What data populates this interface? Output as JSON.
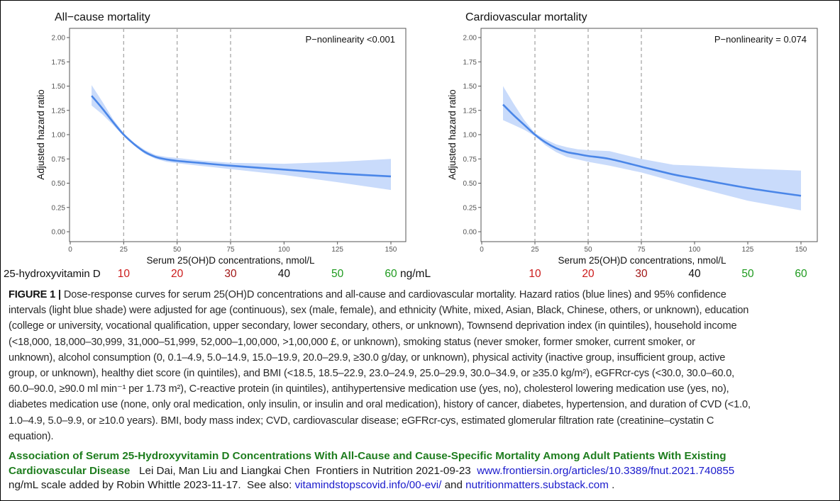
{
  "chart_data": [
    {
      "type": "line",
      "title": "All−cause mortality",
      "annotation": "P−nonlinearity <0.001",
      "xlabel": "Serum 25(OH)D concentrations, nmol/L",
      "ylabel": "Adjusted hazard ratio",
      "xlim": [
        0,
        150
      ],
      "ylim": [
        0,
        2
      ],
      "x_ticks": [
        "0",
        "25",
        "50",
        "75",
        "100",
        "125",
        "150"
      ],
      "y_ticks": [
        "0.00",
        "0.25",
        "0.50",
        "0.75",
        "1.00",
        "1.25",
        "1.50",
        "1.75",
        "2.00"
      ],
      "reference_lines_x": [
        25,
        50,
        75
      ],
      "grid": false,
      "series": [
        {
          "x": [
            10,
            15,
            20,
            25,
            30,
            35,
            40,
            45,
            50,
            60,
            75,
            100,
            125,
            150
          ],
          "y": [
            1.4,
            1.27,
            1.13,
            1.0,
            0.9,
            0.82,
            0.77,
            0.745,
            0.73,
            0.71,
            0.68,
            0.64,
            0.6,
            0.57
          ],
          "ci_lower": [
            1.3,
            1.21,
            1.1,
            0.985,
            0.885,
            0.8,
            0.75,
            0.72,
            0.705,
            0.68,
            0.645,
            0.585,
            0.51,
            0.43
          ],
          "ci_upper": [
            1.51,
            1.34,
            1.16,
            1.015,
            0.915,
            0.84,
            0.79,
            0.77,
            0.76,
            0.735,
            0.71,
            0.7,
            0.72,
            0.75
          ]
        }
      ],
      "colors": {
        "line": "#4a86e8",
        "band": "#c9dbfb",
        "refline": "#a8a8a8"
      }
    },
    {
      "type": "line",
      "title": "Cardiovascular mortality",
      "annotation": "P−nonlinearity = 0.074",
      "xlabel": "Serum 25(OH)D concentrations, nmol/L",
      "ylabel": "Adjusted hazard ratio",
      "xlim": [
        0,
        150
      ],
      "ylim": [
        0,
        2
      ],
      "x_ticks": [
        "0",
        "25",
        "50",
        "75",
        "100",
        "125",
        "150"
      ],
      "y_ticks": [
        "0.00",
        "0.25",
        "0.50",
        "0.75",
        "1.00",
        "1.25",
        "1.50",
        "1.75",
        "2.00"
      ],
      "reference_lines_x": [
        25,
        50,
        75
      ],
      "grid": false,
      "series": [
        {
          "x": [
            10,
            15,
            20,
            25,
            30,
            35,
            40,
            45,
            50,
            60,
            75,
            90,
            100,
            125,
            150
          ],
          "y": [
            1.31,
            1.2,
            1.1,
            1.0,
            0.92,
            0.86,
            0.82,
            0.8,
            0.78,
            0.75,
            0.67,
            0.59,
            0.55,
            0.45,
            0.37
          ],
          "ci_lower": [
            1.15,
            1.1,
            1.05,
            0.985,
            0.89,
            0.82,
            0.77,
            0.745,
            0.72,
            0.68,
            0.61,
            0.52,
            0.46,
            0.32,
            0.22
          ],
          "ci_upper": [
            1.5,
            1.32,
            1.15,
            1.015,
            0.95,
            0.9,
            0.87,
            0.85,
            0.84,
            0.83,
            0.75,
            0.69,
            0.68,
            0.65,
            0.63
          ]
        }
      ],
      "colors": {
        "line": "#4a86e8",
        "band": "#c9dbfb",
        "refline": "#a8a8a8"
      }
    }
  ],
  "ngml_scale": {
    "label": "25-hydroxyvitamin D",
    "unit": "ng/mL",
    "values": [
      {
        "ng": "10",
        "nmol": 25,
        "color": "#cc1a1a"
      },
      {
        "ng": "20",
        "nmol": 50,
        "color": "#cc1a1a"
      },
      {
        "ng": "30",
        "nmol": 75,
        "color": "#a01515"
      },
      {
        "ng": "40",
        "nmol": 100,
        "color": "#111111"
      },
      {
        "ng": "50",
        "nmol": 125,
        "color": "#1e9a1e"
      },
      {
        "ng": "60",
        "nmol": 150,
        "color": "#1e9a1e"
      }
    ]
  },
  "caption": {
    "label": "FIGURE 1 |",
    "lines": [
      " Dose-response curves for serum 25(OH)D concentrations and all-cause and cardiovascular mortality. Hazard ratios (blue lines) and 95% confidence",
      "intervals (light blue shade) were adjusted for age (continuous), sex (male, female), and ethnicity (White, mixed, Asian, Black, Chinese, others, or unknown), education",
      "(college or university, vocational qualification, upper secondary, lower secondary, others, or unknown), Townsend deprivation index (in quintiles), household income",
      "(<18,000, 18,000–30,999, 31,000–51,999, 52,000–1,00,000, >1,00,000 £, or unknown), smoking status (never smoker, former smoker, current smoker, or",
      "unknown), alcohol consumption (0, 0.1–4.9, 5.0–14.9, 15.0–19.9, 20.0–29.9, ≥30.0 g/day, or unknown), physical activity (inactive group, insufficient group, active",
      "group, or unknown), healthy diet score (in quintiles), and BMI (<18.5, 18.5–22.9, 23.0–24.9, 25.0–29.9, 30.0–34.9, or ≥35.0 kg/m²), eGFRcr-cys (<30.0, 30.0–60.0,",
      "60.0–90.0, ≥90.0 ml min⁻¹ per 1.73 m²), C-reactive protein (in quintiles), antihypertensive medication use (yes, no), cholesterol lowering medication use (yes, no),",
      "diabetes medication use (none, only oral medication, only insulin, or insulin and oral medication), history of cancer, diabetes, hypertension, and duration of CVD (<1.0,",
      "1.0–4.9, 5.0–9.9, or ≥10.0 years). BMI, body mass index; CVD, cardiovascular disease; eGFRcr-cys, estimated glomerular filtration rate (creatinine–cystatin C",
      "equation)."
    ]
  },
  "reference": {
    "title_line1": "Association of Serum 25-Hydroxyvitamin D Concentrations With All-Cause and Cause-Specific Mortality Among Adult Patients With Existing",
    "title_line2": "Cardiovascular Disease",
    "authors": "   Lei Dai, Man Liu and Liangkai Chen  Frontiers in Nutrition 2021-09-23  ",
    "url": "www.frontiersin.org/articles/10.3389/fnut.2021.740855",
    "note": "ng/mL scale added by Robin Whittle 2023-11-17.  See also: ",
    "link1": "vitamindstopscovid.info/00-evi/",
    "and": " and ",
    "link2": "nutritionmatters.substack.com",
    "end": " ."
  }
}
